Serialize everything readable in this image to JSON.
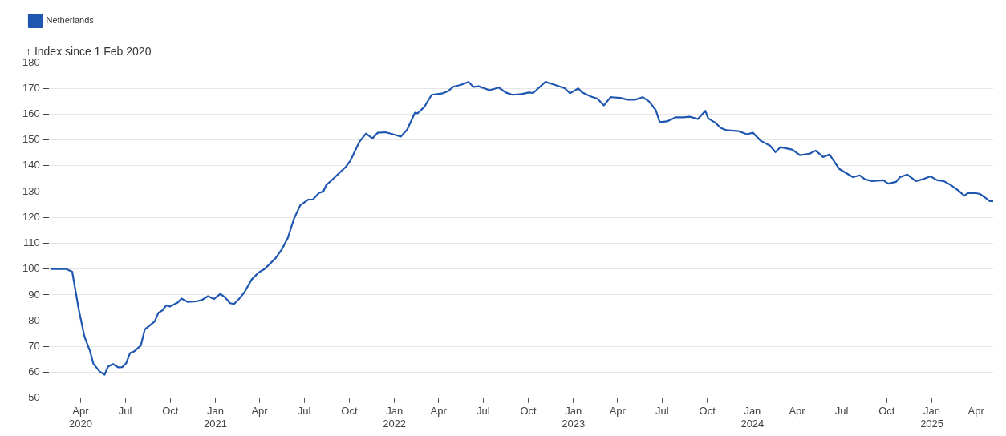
{
  "chart_data": {
    "type": "line",
    "ylabel": "↑ Index since 1 Feb 2020",
    "legend": "top left",
    "grid": "y",
    "marker": "none",
    "line_style": "solid",
    "xlim": [
      "2020-01-27",
      "2025-05-06"
    ],
    "xticks": [
      {
        "value": "2020-04-01",
        "label": "Apr 2020"
      },
      {
        "value": "2020-07-01",
        "label": "Jul"
      },
      {
        "value": "2020-10-01",
        "label": "Oct"
      },
      {
        "value": "2021-01-01",
        "label": "Jan 2021"
      },
      {
        "value": "2021-04-01",
        "label": "Apr"
      },
      {
        "value": "2021-07-01",
        "label": "Jul"
      },
      {
        "value": "2021-10-01",
        "label": "Oct"
      },
      {
        "value": "2022-01-01",
        "label": "Jan 2022"
      },
      {
        "value": "2022-04-01",
        "label": "Apr"
      },
      {
        "value": "2022-07-01",
        "label": "Jul"
      },
      {
        "value": "2022-10-01",
        "label": "Oct"
      },
      {
        "value": "2023-01-01",
        "label": "Jan 2023"
      },
      {
        "value": "2023-04-01",
        "label": "Apr"
      },
      {
        "value": "2023-07-01",
        "label": "Jul"
      },
      {
        "value": "2023-10-01",
        "label": "Oct"
      },
      {
        "value": "2024-01-01",
        "label": "Jan 2024"
      },
      {
        "value": "2024-04-01",
        "label": "Apr"
      },
      {
        "value": "2024-07-01",
        "label": "Jul"
      },
      {
        "value": "2024-10-01",
        "label": "Oct"
      },
      {
        "value": "2025-01-01",
        "label": "Jan 2025"
      },
      {
        "value": "2025-04-01",
        "label": "Apr"
      }
    ],
    "ylim": [
      50,
      180
    ],
    "yticks": [
      {
        "value": 50,
        "label": "50"
      },
      {
        "value": 60,
        "label": "60"
      },
      {
        "value": 70,
        "label": "70"
      },
      {
        "value": 80,
        "label": "80"
      },
      {
        "value": 90,
        "label": "90"
      },
      {
        "value": 100,
        "label": "100"
      },
      {
        "value": 110,
        "label": "110"
      },
      {
        "value": 120,
        "label": "120"
      },
      {
        "value": 130,
        "label": "130"
      },
      {
        "value": 140,
        "label": "140"
      },
      {
        "value": 150,
        "label": "150"
      },
      {
        "value": 160,
        "label": "160"
      },
      {
        "value": 170,
        "label": "170"
      },
      {
        "value": 180,
        "label": "180"
      }
    ],
    "x": [
      "2020-02-01",
      "2020-03-03",
      "2020-03-15",
      "2020-03-28",
      "2020-04-09",
      "2020-04-20",
      "2020-04-27",
      "2020-05-10",
      "2020-05-20",
      "2020-05-27",
      "2020-06-06",
      "2020-06-17",
      "2020-06-25",
      "2020-07-03",
      "2020-07-11",
      "2020-07-20",
      "2020-08-02",
      "2020-08-10",
      "2020-08-30",
      "2020-09-07",
      "2020-09-15",
      "2020-09-23",
      "2020-09-30",
      "2020-10-16",
      "2020-10-24",
      "2020-11-05",
      "2020-11-23",
      "2020-12-04",
      "2020-12-17",
      "2020-12-29",
      "2021-01-11",
      "2021-01-21",
      "2021-01-31",
      "2021-02-08",
      "2021-02-18",
      "2021-03-01",
      "2021-03-16",
      "2021-03-31",
      "2021-04-11",
      "2021-04-23",
      "2021-05-04",
      "2021-05-17",
      "2021-05-29",
      "2021-06-10",
      "2021-06-23",
      "2021-07-09",
      "2021-07-19",
      "2021-08-01",
      "2021-08-09",
      "2021-08-15",
      "2021-08-31",
      "2021-09-23",
      "2021-10-03",
      "2021-10-22",
      "2021-11-04",
      "2021-11-17",
      "2021-11-28",
      "2021-12-14",
      "2021-12-29",
      "2022-01-14",
      "2022-01-27",
      "2022-02-12",
      "2022-02-17",
      "2022-03-03",
      "2022-03-18",
      "2022-04-10",
      "2022-04-21",
      "2022-05-01",
      "2022-05-16",
      "2022-06-01",
      "2022-06-11",
      "2022-06-22",
      "2022-07-14",
      "2022-08-02",
      "2022-08-16",
      "2022-08-30",
      "2022-09-17",
      "2022-10-02",
      "2022-10-11",
      "2022-10-23",
      "2022-11-05",
      "2022-11-25",
      "2022-12-15",
      "2022-12-25",
      "2023-01-11",
      "2023-01-19",
      "2023-02-05",
      "2023-02-19",
      "2023-03-04",
      "2023-03-18",
      "2023-04-07",
      "2023-04-21",
      "2023-05-07",
      "2023-05-22",
      "2023-06-04",
      "2023-06-18",
      "2023-06-26",
      "2023-07-11",
      "2023-07-29",
      "2023-08-13",
      "2023-08-26",
      "2023-09-12",
      "2023-09-27",
      "2023-10-03",
      "2023-10-18",
      "2023-10-28",
      "2023-11-09",
      "2023-12-04",
      "2023-12-21",
      "2024-01-02",
      "2024-01-18",
      "2024-02-06",
      "2024-02-17",
      "2024-02-27",
      "2024-03-22",
      "2024-04-07",
      "2024-04-27",
      "2024-05-09",
      "2024-05-24",
      "2024-06-06",
      "2024-06-16",
      "2024-06-26",
      "2024-07-24",
      "2024-08-07",
      "2024-08-18",
      "2024-09-01",
      "2024-09-24",
      "2024-10-04",
      "2024-10-20",
      "2024-10-28",
      "2024-11-12",
      "2024-11-29",
      "2024-12-12",
      "2024-12-29",
      "2025-01-12",
      "2025-01-25",
      "2025-02-09",
      "2025-02-25",
      "2025-03-08",
      "2025-03-15",
      "2025-04-01",
      "2025-04-09",
      "2025-04-21",
      "2025-04-29",
      "2025-05-05"
    ],
    "series": [
      {
        "name": "Netherlands",
        "color": "#1f57b0",
        "values": [
          100,
          100,
          99,
          84.7,
          73.8,
          68.4,
          63.4,
          60.3,
          59.1,
          62.2,
          63.2,
          61.9,
          62,
          63.5,
          67.5,
          68.2,
          70.4,
          76.6,
          79.7,
          83.1,
          84,
          86,
          85.5,
          87,
          88.6,
          87.3,
          87.5,
          88,
          89.5,
          88.4,
          90.4,
          89,
          86.8,
          86.5,
          88.4,
          91,
          96,
          98.8,
          100,
          102.2,
          104.3,
          107.8,
          112.2,
          119.4,
          124.7,
          126.9,
          127,
          129.6,
          130,
          132.5,
          135.3,
          139.4,
          141.9,
          149.4,
          152.5,
          150.6,
          152.8,
          153,
          152.2,
          151.3,
          154,
          160.6,
          160.3,
          162.8,
          167.5,
          168.1,
          169,
          170.6,
          171.3,
          172.5,
          170.6,
          170.8,
          169.3,
          170.3,
          168.4,
          167.5,
          167.8,
          168.4,
          168.2,
          170.3,
          172.5,
          171.3,
          170,
          168.1,
          170,
          168.4,
          166.9,
          166,
          163.4,
          166.6,
          166.3,
          165.6,
          165.6,
          166.6,
          165,
          161.6,
          156.9,
          157.2,
          158.8,
          158.8,
          159,
          158.1,
          161.3,
          158.4,
          156.6,
          154.7,
          153.8,
          153.4,
          152.2,
          152.8,
          149.7,
          147.8,
          145.3,
          147.2,
          146.3,
          144.1,
          144.7,
          145.9,
          143.4,
          144.4,
          141.6,
          138.8,
          135.6,
          136.3,
          134.7,
          134.1,
          134.4,
          133.1,
          133.8,
          135.6,
          136.6,
          134.1,
          134.7,
          135.9,
          134.4,
          134.1,
          132.5,
          130.3,
          128.4,
          129.4,
          129.4,
          129.1,
          127.5,
          126.3,
          126.3
        ]
      }
    ]
  }
}
